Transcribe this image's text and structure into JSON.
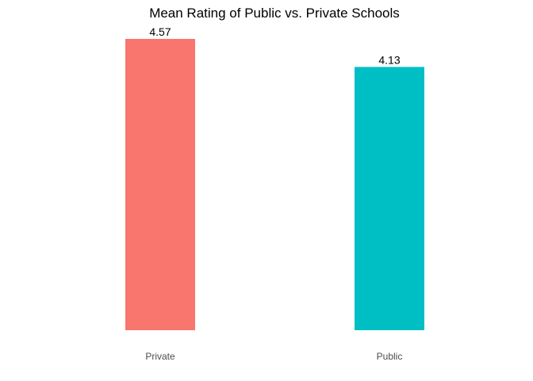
{
  "chart_data": {
    "type": "bar",
    "title": "Mean Rating of Public vs. Private Schools",
    "xlabel": "",
    "ylabel": "",
    "categories": [
      "Private",
      "Public"
    ],
    "values": [
      4.57,
      4.13
    ],
    "value_labels": [
      "4.57",
      "4.13"
    ],
    "colors": [
      "#F8766D",
      "#00BFC4"
    ],
    "ylim": [
      0,
      4.57
    ],
    "grid": false,
    "legend": "none"
  }
}
